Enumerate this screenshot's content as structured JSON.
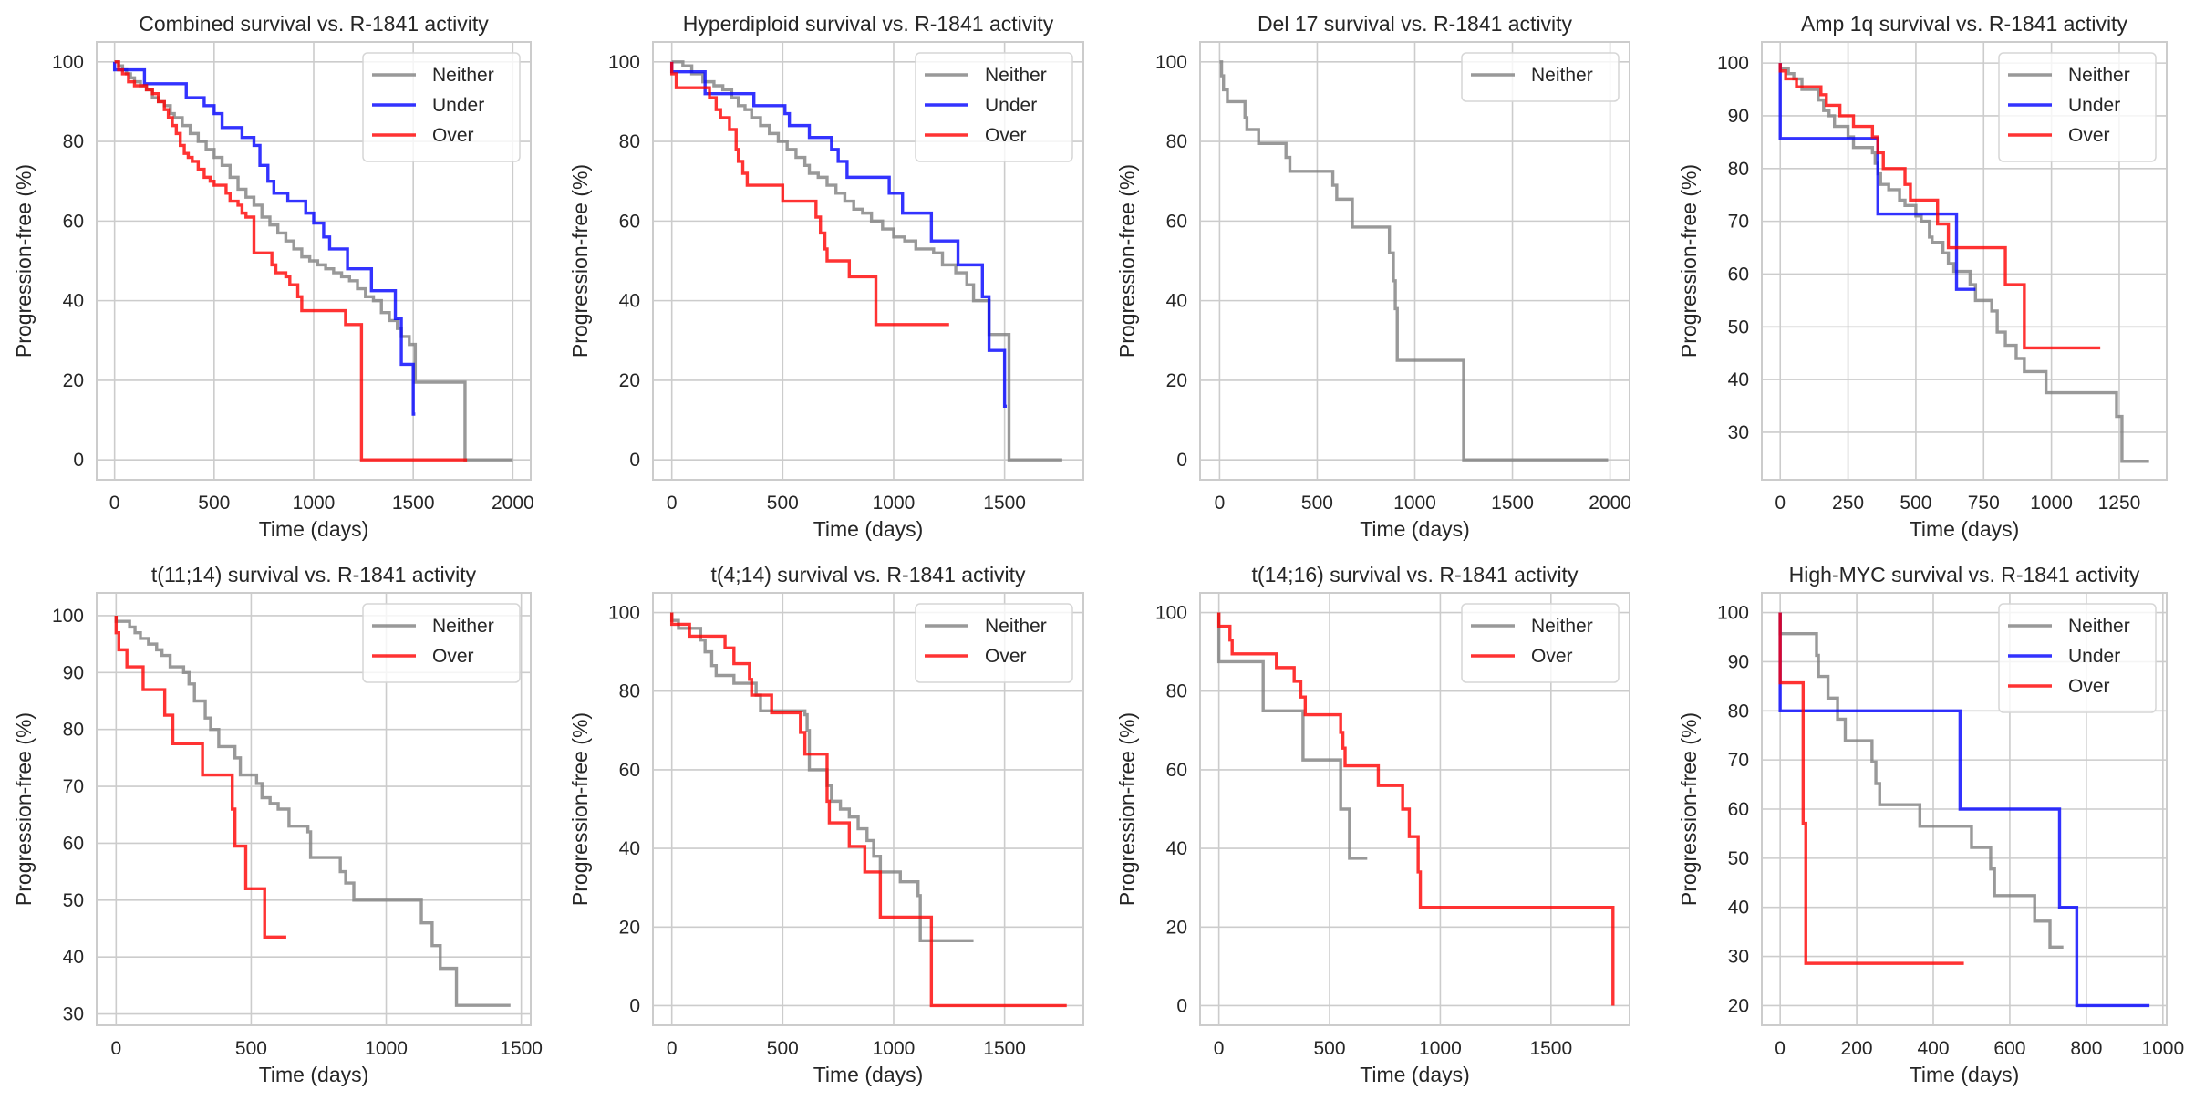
{
  "figure": {
    "colors": {
      "Neither": "#808080",
      "Under": "#0000ff",
      "Over": "#ff0000"
    }
  },
  "chart_data": [
    {
      "type": "line",
      "title": "Combined survival vs. R-1841 activity",
      "xlabel": "Time (days)",
      "ylabel": "Progression-free (%)",
      "xlim": [
        -90,
        2090
      ],
      "ylim": [
        -5,
        105
      ],
      "xticks": [
        0,
        500,
        1000,
        1500,
        2000
      ],
      "yticks": [
        0,
        20,
        40,
        60,
        80,
        100
      ],
      "grid": true,
      "legend": "top-right",
      "series": [
        {
          "name": "Neither",
          "x": [
            0,
            20,
            40,
            60,
            80,
            100,
            130,
            160,
            190,
            220,
            250,
            280,
            300,
            340,
            380,
            420,
            460,
            500,
            540,
            580,
            620,
            660,
            700,
            740,
            780,
            820,
            860,
            900,
            940,
            980,
            1020,
            1060,
            1100,
            1140,
            1180,
            1220,
            1260,
            1300,
            1340,
            1380,
            1420,
            1440,
            1480,
            1510,
            1760,
            2000
          ],
          "y": [
            100,
            99,
            98,
            97,
            96,
            95,
            94,
            93,
            91,
            90,
            89,
            87,
            86,
            84,
            82,
            80,
            78,
            76,
            74,
            71,
            68,
            66,
            64,
            61,
            59,
            57,
            55,
            53,
            51,
            50,
            49,
            48,
            47,
            46,
            45,
            43,
            41,
            40,
            37,
            35,
            33,
            31,
            29,
            19.5,
            0,
            0
          ]
        },
        {
          "name": "Under",
          "x": [
            0,
            150,
            360,
            450,
            500,
            540,
            640,
            700,
            730,
            770,
            800,
            870,
            960,
            1000,
            1050,
            1080,
            1170,
            1290,
            1410,
            1440,
            1500,
            1510
          ],
          "y": [
            98,
            94.5,
            91,
            89,
            87,
            83.5,
            81,
            79,
            74,
            70,
            67,
            65,
            62,
            59.5,
            56,
            53,
            48,
            42.5,
            35.5,
            24,
            11.5,
            11.5
          ]
        },
        {
          "name": "Over",
          "x": [
            0,
            20,
            40,
            70,
            100,
            130,
            160,
            190,
            220,
            250,
            270,
            290,
            310,
            330,
            350,
            370,
            390,
            420,
            450,
            480,
            500,
            560,
            580,
            620,
            640,
            660,
            700,
            720,
            790,
            810,
            860,
            880,
            920,
            940,
            1160,
            1240,
            1770
          ],
          "y": [
            100,
            98,
            97,
            95,
            94,
            94,
            93,
            92,
            90,
            88,
            86,
            84,
            82,
            79,
            77,
            76,
            75,
            73,
            71,
            70,
            69,
            67,
            65,
            64,
            62,
            61,
            52,
            52,
            49,
            47,
            46,
            44,
            41,
            37.5,
            34,
            0,
            0
          ]
        }
      ]
    },
    {
      "type": "line",
      "title": "Hyperdiploid survival vs. R-1841 activity",
      "xlabel": "Time (days)",
      "ylabel": "Progression-free (%)",
      "xlim": [
        -85,
        1855
      ],
      "ylim": [
        -5,
        105
      ],
      "xticks": [
        0,
        500,
        1000,
        1500
      ],
      "yticks": [
        0,
        20,
        40,
        60,
        80,
        100
      ],
      "grid": true,
      "legend": "top-right",
      "series": [
        {
          "name": "Neither",
          "x": [
            0,
            50,
            90,
            140,
            190,
            230,
            270,
            300,
            330,
            360,
            400,
            440,
            480,
            520,
            560,
            600,
            620,
            660,
            700,
            740,
            780,
            820,
            860,
            900,
            950,
            1000,
            1050,
            1100,
            1180,
            1220,
            1280,
            1330,
            1360,
            1410,
            1430,
            1520,
            1760
          ],
          "y": [
            100,
            99,
            97,
            95,
            94,
            93,
            91,
            89,
            88,
            86,
            84,
            82,
            80,
            78,
            76,
            74,
            72,
            71,
            69,
            67,
            65,
            63,
            62,
            60,
            58,
            56,
            55,
            53,
            52,
            49,
            47,
            44,
            40,
            40,
            31.5,
            0,
            0
          ]
        },
        {
          "name": "Under",
          "x": [
            0,
            150,
            370,
            510,
            530,
            620,
            720,
            750,
            790,
            980,
            1040,
            1170,
            1290,
            1400,
            1430,
            1500,
            1510
          ],
          "y": [
            97.5,
            92,
            89,
            87,
            84,
            81,
            78,
            75,
            71,
            67,
            62,
            55,
            49,
            41,
            27.5,
            13.5,
            13.5
          ]
        },
        {
          "name": "Over",
          "x": [
            0,
            20,
            170,
            200,
            220,
            260,
            290,
            300,
            320,
            340,
            500,
            650,
            670,
            690,
            700,
            800,
            920,
            1250
          ],
          "y": [
            97,
            93.5,
            91,
            88,
            86,
            83,
            78,
            75,
            72,
            69,
            65,
            61,
            57,
            53,
            50,
            46,
            34,
            34
          ]
        }
      ]
    },
    {
      "type": "line",
      "title": "Del 17 survival vs. R-1841 activity",
      "xlabel": "Time (days)",
      "ylabel": "Progression-free (%)",
      "xlim": [
        -100,
        2100
      ],
      "ylim": [
        -5,
        105
      ],
      "xticks": [
        0,
        500,
        1000,
        1500,
        2000
      ],
      "yticks": [
        0,
        20,
        40,
        60,
        80,
        100
      ],
      "grid": true,
      "legend": "top-right",
      "series": [
        {
          "name": "Neither",
          "x": [
            0,
            10,
            20,
            40,
            130,
            140,
            200,
            340,
            360,
            580,
            600,
            680,
            870,
            890,
            900,
            910,
            1250,
            1990
          ],
          "y": [
            100,
            96.5,
            93,
            90,
            86,
            83,
            79.5,
            76,
            72.5,
            69,
            65.5,
            58.5,
            52,
            45,
            38,
            25,
            0,
            0
          ]
        }
      ]
    },
    {
      "type": "line",
      "title": "Amp 1q survival vs. R-1841 activity",
      "xlabel": "Time (days)",
      "ylabel": "Progression-free (%)",
      "xlim": [
        -68,
        1425
      ],
      "ylim": [
        21,
        104
      ],
      "xticks": [
        0,
        250,
        500,
        750,
        1000,
        1250
      ],
      "yticks": [
        30,
        40,
        50,
        60,
        70,
        80,
        90
      ],
      "ytick_labels_extra": [
        100
      ],
      "grid": true,
      "legend": "top-right",
      "series": [
        {
          "name": "Neither",
          "x": [
            0,
            30,
            50,
            80,
            140,
            160,
            180,
            200,
            250,
            270,
            340,
            350,
            360,
            370,
            400,
            440,
            460,
            500,
            520,
            550,
            560,
            600,
            620,
            640,
            660,
            700,
            720,
            780,
            800,
            830,
            870,
            900,
            980,
            1240,
            1260,
            1360
          ],
          "y": [
            99,
            98,
            97,
            95,
            93,
            91,
            90,
            88,
            86,
            84,
            83,
            81,
            79,
            77,
            76,
            74,
            73,
            71,
            70,
            67,
            66,
            64,
            62,
            60.5,
            60.5,
            58,
            55,
            53,
            49,
            46.5,
            44,
            41.5,
            37.5,
            33,
            24.5,
            24.5
          ],
          "y_end": 24.5
        },
        {
          "name": "Under",
          "x": [
            0,
            360,
            650,
            720
          ],
          "y": [
            85.7,
            71.4,
            57.1,
            57.1
          ]
        },
        {
          "name": "Over",
          "x": [
            0,
            20,
            60,
            150,
            170,
            220,
            270,
            340,
            360,
            380,
            460,
            480,
            580,
            620,
            830,
            900,
            1180
          ],
          "y": [
            98.5,
            97,
            95.5,
            94,
            92,
            90,
            88,
            86,
            83,
            80,
            77,
            74,
            69.5,
            65,
            58,
            46,
            46
          ]
        }
      ]
    },
    {
      "type": "line",
      "title": "t(11;14) survival vs. R-1841 activity",
      "xlabel": "Time (days)",
      "ylabel": "Progression-free (%)",
      "xlim": [
        -72,
        1535
      ],
      "ylim": [
        28,
        104
      ],
      "xticks": [
        0,
        500,
        1000,
        1500
      ],
      "yticks": [
        30,
        40,
        50,
        60,
        70,
        80,
        90,
        100
      ],
      "grid": true,
      "legend": "top-right",
      "series": [
        {
          "name": "Neither",
          "x": [
            0,
            50,
            70,
            90,
            120,
            150,
            170,
            200,
            250,
            270,
            290,
            330,
            350,
            380,
            440,
            460,
            520,
            540,
            570,
            600,
            640,
            710,
            720,
            830,
            850,
            880,
            1130,
            1170,
            1200,
            1260,
            1460
          ],
          "y": [
            99,
            98,
            97,
            96,
            95,
            94,
            93,
            91,
            90,
            88,
            85,
            82,
            80,
            77,
            75,
            72,
            70.5,
            68,
            67,
            66,
            63,
            62,
            57.5,
            55,
            53,
            50,
            46,
            42,
            38,
            31.5,
            31.5
          ],
          "start": 100
        },
        {
          "name": "Over",
          "x": [
            0,
            10,
            40,
            100,
            180,
            210,
            320,
            430,
            440,
            480,
            550,
            630
          ],
          "y": [
            97,
            94,
            91,
            87,
            82.5,
            77.5,
            72,
            66,
            59.5,
            52,
            43.5,
            43.5
          ],
          "start": 100
        }
      ]
    },
    {
      "type": "line",
      "title": "t(4;14) survival vs. R-1841 activity",
      "xlabel": "Time (days)",
      "ylabel": "Progression-free (%)",
      "xlim": [
        -85,
        1855
      ],
      "ylim": [
        -5,
        105
      ],
      "xticks": [
        0,
        500,
        1000,
        1500
      ],
      "yticks": [
        0,
        20,
        40,
        60,
        80,
        100
      ],
      "grid": true,
      "legend": "top-right",
      "series": [
        {
          "name": "Neither",
          "x": [
            0,
            30,
            130,
            150,
            180,
            200,
            240,
            280,
            380,
            400,
            600,
            610,
            620,
            700,
            720,
            760,
            800,
            840,
            880,
            910,
            940,
            1030,
            1110,
            1120,
            1360
          ],
          "y": [
            98,
            96,
            93,
            90,
            86.5,
            84,
            84,
            82,
            79,
            75,
            74,
            70,
            60,
            56,
            52,
            50,
            48,
            45,
            42,
            38,
            34,
            31.5,
            28,
            16.5,
            16.5
          ]
        },
        {
          "name": "Over",
          "x": [
            0,
            80,
            240,
            280,
            350,
            360,
            450,
            580,
            600,
            610,
            700,
            710,
            800,
            870,
            940,
            1170,
            1780
          ],
          "y": [
            97,
            94,
            91,
            87,
            83,
            79,
            74.5,
            69.5,
            64,
            64,
            52,
            46.5,
            40.5,
            34,
            22.5,
            0,
            0
          ]
        }
      ]
    },
    {
      "type": "line",
      "title": "t(14;16) survival vs. R-1841 activity",
      "xlabel": "Time (days)",
      "ylabel": "Progression-free (%)",
      "xlim": [
        -85,
        1855
      ],
      "ylim": [
        -5,
        105
      ],
      "xticks": [
        0,
        500,
        1000,
        1500
      ],
      "yticks": [
        0,
        20,
        40,
        60,
        80,
        100
      ],
      "grid": true,
      "legend": "top-right",
      "series": [
        {
          "name": "Neither",
          "x": [
            0,
            200,
            380,
            550,
            590,
            670
          ],
          "y": [
            87.5,
            75,
            62.5,
            50,
            37.5,
            37.5
          ]
        },
        {
          "name": "Over",
          "x": [
            0,
            50,
            60,
            260,
            340,
            370,
            390,
            550,
            560,
            570,
            720,
            830,
            860,
            900,
            910,
            1780
          ],
          "y": [
            96.5,
            93,
            89.5,
            86,
            82.5,
            78.5,
            74,
            69.5,
            65.5,
            61,
            56,
            50,
            43,
            34,
            25,
            0
          ]
        }
      ]
    },
    {
      "type": "line",
      "title": "High-MYC survival vs. R-1841 activity",
      "xlabel": "Time (days)",
      "ylabel": "Progression-free (%)",
      "xlim": [
        -48,
        1010
      ],
      "ylim": [
        16,
        104
      ],
      "xticks": [
        0,
        200,
        400,
        600,
        800,
        1000
      ],
      "yticks": [
        20,
        30,
        40,
        50,
        60,
        70,
        80,
        90,
        100
      ],
      "grid": true,
      "legend": "top-right",
      "series": [
        {
          "name": "Neither",
          "x": [
            0,
            95,
            100,
            125,
            150,
            170,
            240,
            250,
            260,
            365,
            500,
            550,
            560,
            665,
            705,
            740
          ],
          "y": [
            95.7,
            91.3,
            87,
            82.6,
            78.3,
            73.9,
            69.6,
            65.2,
            60.9,
            56.5,
            52.2,
            47.8,
            42.4,
            37.2,
            31.9,
            31.9
          ]
        },
        {
          "name": "Under",
          "x": [
            0,
            470,
            730,
            775,
            965
          ],
          "y": [
            80,
            60,
            40,
            20,
            20
          ]
        },
        {
          "name": "Over",
          "x": [
            0,
            60,
            67,
            480
          ],
          "y": [
            85.7,
            57.1,
            28.6,
            28.6
          ]
        }
      ]
    }
  ]
}
